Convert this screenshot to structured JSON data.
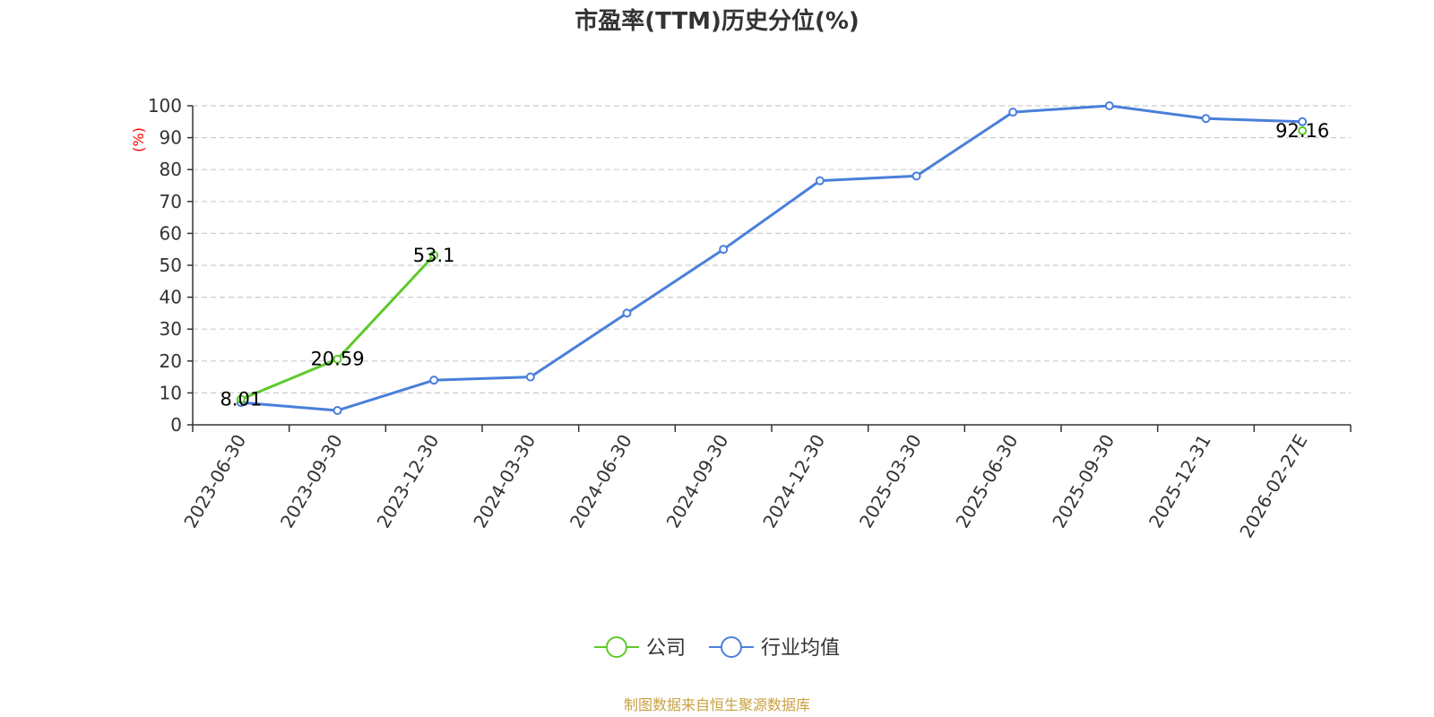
{
  "chart_data": {
    "type": "line",
    "title": "市盈率(TTM)历史分位(%)",
    "ylabel": "(%)",
    "xlabel": "",
    "ylim": [
      0,
      100
    ],
    "yticks": [
      0,
      10,
      20,
      30,
      40,
      50,
      60,
      70,
      80,
      90,
      100
    ],
    "categories": [
      "2023-06-30",
      "2023-09-30",
      "2023-12-30",
      "2024-03-30",
      "2024-06-30",
      "2024-09-30",
      "2024-12-30",
      "2025-03-30",
      "2025-06-30",
      "2025-09-30",
      "2025-12-31",
      "2026-02-27E"
    ],
    "grid": "horizontal-dashed",
    "legend_position": "bottom",
    "series": [
      {
        "name": "公司",
        "color": "#5fc92d",
        "values": [
          8.01,
          20.59,
          53.1,
          null,
          null,
          null,
          null,
          null,
          null,
          null,
          null,
          92.16
        ],
        "labels": [
          "8.01",
          "20.59",
          "53.1",
          "",
          "",
          "",
          "",
          "",
          "",
          "",
          "",
          "92.16"
        ]
      },
      {
        "name": "行业均值",
        "color": "#4a7fdb",
        "values": [
          7.0,
          4.5,
          14.0,
          15.0,
          35.0,
          55.0,
          76.5,
          78.0,
          98.0,
          100.0,
          96.0,
          95.0
        ]
      }
    ]
  },
  "source_note": "制图数据来自恒生聚源数据库"
}
